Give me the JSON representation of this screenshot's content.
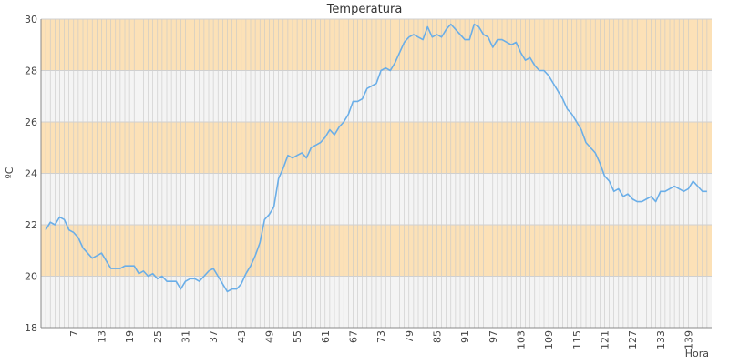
{
  "chart_data": {
    "type": "line",
    "title": "Temperatura",
    "xlabel": "Hora",
    "ylabel": "ºC",
    "xlim": [
      0,
      144
    ],
    "ylim": [
      18,
      30
    ],
    "y_ticks": [
      18,
      20,
      22,
      24,
      26,
      28,
      30
    ],
    "x_ticks": [
      7,
      13,
      19,
      25,
      31,
      37,
      43,
      49,
      55,
      61,
      67,
      73,
      79,
      85,
      91,
      97,
      103,
      109,
      115,
      121,
      127,
      133,
      139
    ],
    "grid": true,
    "band_colors": [
      "#fce1b7",
      "#f4f4f4"
    ],
    "line_color": "#6aaee8",
    "series": [
      {
        "x": [
          1,
          2,
          3,
          4,
          5,
          6,
          7,
          8,
          9,
          10,
          11,
          12,
          13,
          14,
          15,
          16,
          17,
          18,
          19,
          20,
          21,
          22,
          23,
          24,
          25,
          26,
          27,
          28,
          29,
          30,
          31,
          32,
          33,
          34,
          35,
          36,
          37,
          38,
          39,
          40,
          41,
          42,
          43,
          44,
          45,
          46,
          47,
          48,
          49,
          50,
          51,
          52,
          53,
          54,
          55,
          56,
          57,
          58,
          59,
          60,
          61,
          62,
          63,
          64,
          65,
          66,
          67,
          68,
          69,
          70,
          71,
          72,
          73,
          74,
          75,
          76,
          77,
          78,
          79,
          80,
          81,
          82,
          83,
          84,
          85,
          86,
          87,
          88,
          89,
          90,
          91,
          92,
          93,
          94,
          95,
          96,
          97,
          98,
          99,
          100,
          101,
          102,
          103,
          104,
          105,
          106,
          107,
          108,
          109,
          110,
          111,
          112,
          113,
          114,
          115,
          116,
          117,
          118,
          119,
          120,
          121,
          122,
          123,
          124,
          125,
          126,
          127,
          128,
          129,
          130,
          131,
          132,
          133,
          134,
          135,
          136,
          137,
          138,
          139,
          140,
          141,
          142,
          143
        ],
        "y": [
          21.8,
          22.1,
          22.0,
          22.3,
          22.2,
          21.8,
          21.7,
          21.5,
          21.1,
          20.9,
          20.7,
          20.8,
          20.9,
          20.6,
          20.3,
          20.3,
          20.3,
          20.4,
          20.4,
          20.4,
          20.1,
          20.2,
          20.0,
          20.1,
          19.9,
          20.0,
          19.8,
          19.8,
          19.8,
          19.5,
          19.8,
          19.9,
          19.9,
          19.8,
          20.0,
          20.2,
          20.3,
          20.0,
          19.7,
          19.4,
          19.5,
          19.5,
          19.7,
          20.1,
          20.4,
          20.8,
          21.3,
          22.2,
          22.4,
          22.7,
          23.8,
          24.2,
          24.7,
          24.6,
          24.7,
          24.8,
          24.6,
          25.0,
          25.1,
          25.2,
          25.4,
          25.7,
          25.5,
          25.8,
          26.0,
          26.3,
          26.8,
          26.8,
          26.9,
          27.3,
          27.4,
          27.5,
          28.0,
          28.1,
          28.0,
          28.3,
          28.7,
          29.1,
          29.3,
          29.4,
          29.3,
          29.2,
          29.7,
          29.3,
          29.4,
          29.3,
          29.6,
          29.8,
          29.6,
          29.4,
          29.2,
          29.2,
          29.8,
          29.7,
          29.4,
          29.3,
          28.9,
          29.2,
          29.2,
          29.1,
          29.0,
          29.1,
          28.7,
          28.4,
          28.5,
          28.2,
          28.0,
          28.0,
          27.8,
          27.5,
          27.2,
          26.9,
          26.5,
          26.3,
          26.0,
          25.7,
          25.2,
          25.0,
          24.8,
          24.4,
          23.9,
          23.7,
          23.3,
          23.4,
          23.1,
          23.2,
          23.0,
          22.9,
          22.9,
          23.0,
          23.1,
          22.9,
          23.3,
          23.3,
          23.4,
          23.5,
          23.4,
          23.3,
          23.4,
          23.7,
          23.5,
          23.3,
          23.3
        ]
      }
    ]
  }
}
